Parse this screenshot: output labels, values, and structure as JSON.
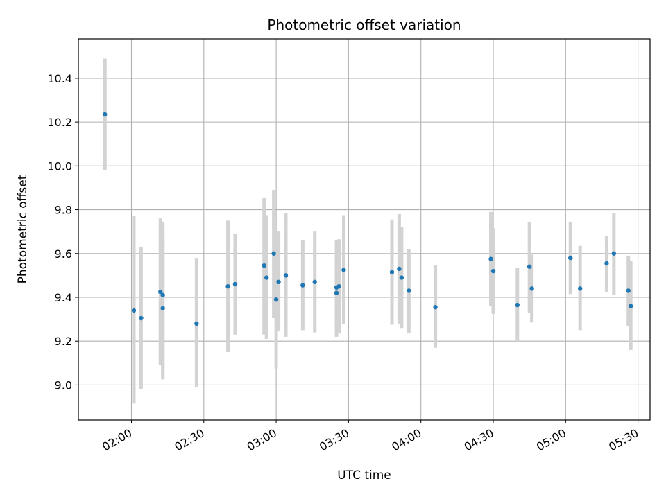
{
  "chart_data": {
    "type": "scatter",
    "title": "Photometric offset variation",
    "xlabel": "UTC time",
    "ylabel": "Photometric offset",
    "xlim": [
      "01:38",
      "05:35"
    ],
    "ylim": [
      8.84,
      10.58
    ],
    "grid": true,
    "x_ticks": [
      "02:00",
      "02:30",
      "03:00",
      "03:30",
      "04:00",
      "04:30",
      "05:00",
      "05:30"
    ],
    "y_ticks": [
      9.0,
      9.2,
      9.4,
      9.6,
      9.8,
      10.0,
      10.2,
      10.4
    ],
    "y_tick_labels": [
      "9.0",
      "9.2",
      "9.4",
      "9.6",
      "9.8",
      "10.0",
      "10.2",
      "10.4"
    ],
    "point_color": "#1f77b4",
    "errorbar_color": "#d3d3d3",
    "points": [
      {
        "x": "01:49",
        "y": 10.235,
        "lo": 9.98,
        "hi": 10.49
      },
      {
        "x": "02:01",
        "y": 9.34,
        "lo": 8.915,
        "hi": 9.77
      },
      {
        "x": "02:04",
        "y": 9.305,
        "lo": 8.98,
        "hi": 9.63
      },
      {
        "x": "02:12",
        "y": 9.425,
        "lo": 9.09,
        "hi": 9.76
      },
      {
        "x": "02:13",
        "y": 9.35,
        "lo": 9.025,
        "hi": 9.675
      },
      {
        "x": "02:13",
        "y": 9.41,
        "lo": 9.075,
        "hi": 9.745
      },
      {
        "x": "02:27",
        "y": 9.28,
        "lo": 8.99,
        "hi": 9.58
      },
      {
        "x": "02:40",
        "y": 9.45,
        "lo": 9.15,
        "hi": 9.75
      },
      {
        "x": "02:43",
        "y": 9.46,
        "lo": 9.23,
        "hi": 9.69
      },
      {
        "x": "02:55",
        "y": 9.545,
        "lo": 9.23,
        "hi": 9.855
      },
      {
        "x": "02:56",
        "y": 9.49,
        "lo": 9.21,
        "hi": 9.775
      },
      {
        "x": "02:59",
        "y": 9.6,
        "lo": 9.305,
        "hi": 9.89
      },
      {
        "x": "03:00",
        "y": 9.39,
        "lo": 9.075,
        "hi": 9.7
      },
      {
        "x": "03:01",
        "y": 9.47,
        "lo": 9.245,
        "hi": 9.7
      },
      {
        "x": "03:04",
        "y": 9.5,
        "lo": 9.22,
        "hi": 9.785
      },
      {
        "x": "03:11",
        "y": 9.455,
        "lo": 9.25,
        "hi": 9.66
      },
      {
        "x": "03:16",
        "y": 9.47,
        "lo": 9.24,
        "hi": 9.7
      },
      {
        "x": "03:25",
        "y": 9.42,
        "lo": 9.22,
        "hi": 9.62
      },
      {
        "x": "03:25",
        "y": 9.445,
        "lo": 9.23,
        "hi": 9.66
      },
      {
        "x": "03:26",
        "y": 9.45,
        "lo": 9.235,
        "hi": 9.665
      },
      {
        "x": "03:28",
        "y": 9.525,
        "lo": 9.28,
        "hi": 9.775
      },
      {
        "x": "03:48",
        "y": 9.515,
        "lo": 9.275,
        "hi": 9.755
      },
      {
        "x": "03:51",
        "y": 9.53,
        "lo": 9.28,
        "hi": 9.78
      },
      {
        "x": "03:52",
        "y": 9.49,
        "lo": 9.26,
        "hi": 9.72
      },
      {
        "x": "03:55",
        "y": 9.43,
        "lo": 9.235,
        "hi": 9.62
      },
      {
        "x": "04:06",
        "y": 9.355,
        "lo": 9.17,
        "hi": 9.545
      },
      {
        "x": "04:29",
        "y": 9.575,
        "lo": 9.36,
        "hi": 9.79
      },
      {
        "x": "04:30",
        "y": 9.52,
        "lo": 9.325,
        "hi": 9.715
      },
      {
        "x": "04:40",
        "y": 9.365,
        "lo": 9.2,
        "hi": 9.535
      },
      {
        "x": "04:45",
        "y": 9.54,
        "lo": 9.33,
        "hi": 9.745
      },
      {
        "x": "04:46",
        "y": 9.44,
        "lo": 9.285,
        "hi": 9.595
      },
      {
        "x": "05:02",
        "y": 9.58,
        "lo": 9.415,
        "hi": 9.745
      },
      {
        "x": "05:06",
        "y": 9.44,
        "lo": 9.25,
        "hi": 9.635
      },
      {
        "x": "05:17",
        "y": 9.555,
        "lo": 9.425,
        "hi": 9.68
      },
      {
        "x": "05:20",
        "y": 9.6,
        "lo": 9.41,
        "hi": 9.785
      },
      {
        "x": "05:26",
        "y": 9.43,
        "lo": 9.27,
        "hi": 9.59
      },
      {
        "x": "05:27",
        "y": 9.36,
        "lo": 9.16,
        "hi": 9.565
      }
    ]
  }
}
